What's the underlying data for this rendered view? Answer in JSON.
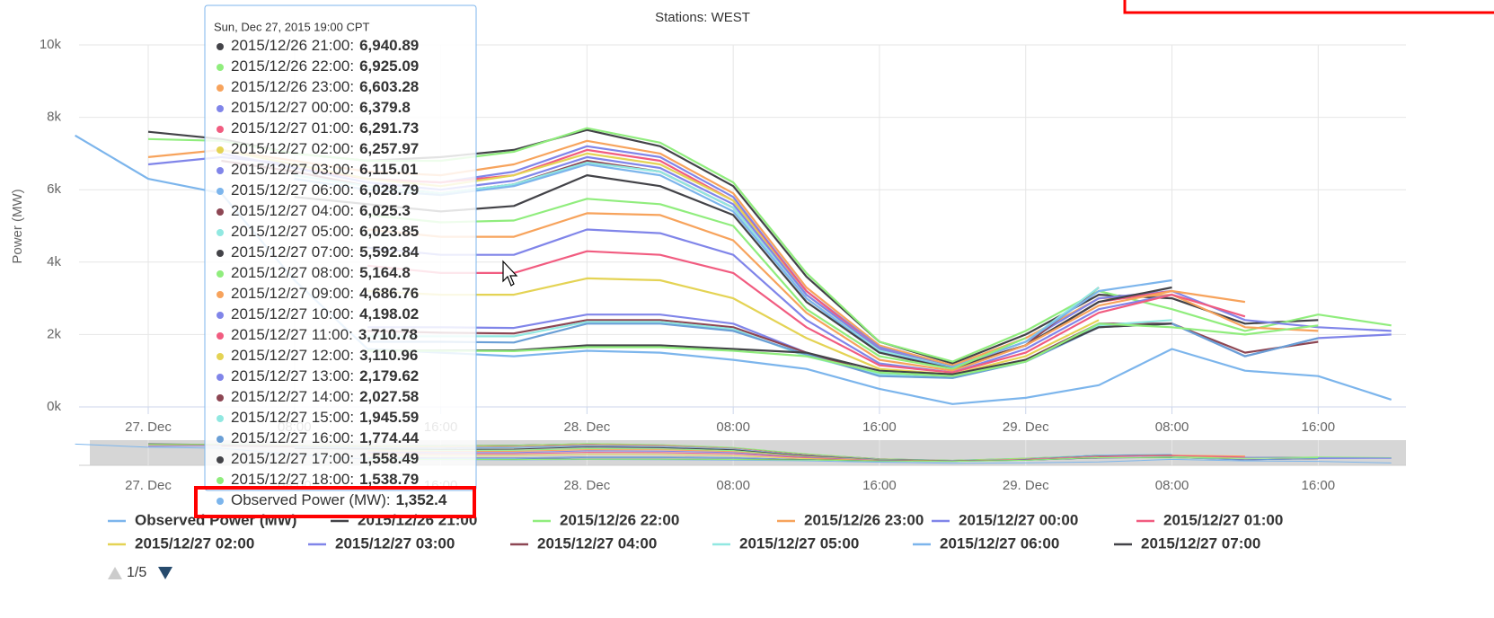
{
  "chart_data": {
    "type": "line",
    "title": "Stations: WEST",
    "y_axis_label": "Power (MW)",
    "x": [
      "2015-12-26T20:00",
      "2015-12-27T00:00",
      "2015-12-27T04:00",
      "2015-12-27T08:00",
      "2015-12-27T12:00",
      "2015-12-27T16:00",
      "2015-12-27T20:00",
      "2015-12-28T00:00",
      "2015-12-28T04:00",
      "2015-12-28T08:00",
      "2015-12-28T12:00",
      "2015-12-28T16:00",
      "2015-12-28T20:00",
      "2015-12-29T00:00",
      "2015-12-29T04:00",
      "2015-12-29T08:00",
      "2015-12-29T12:00",
      "2015-12-29T16:00",
      "2015-12-29T20:00"
    ],
    "xlim": [
      "2015-12-26T20:13",
      "2015-12-29T20:48"
    ],
    "xticks": [
      {
        "value": "2015-12-27T00:00",
        "label": "27. Dec"
      },
      {
        "value": "2015-12-27T08:00",
        "label": "08:00"
      },
      {
        "value": "2015-12-27T16:00",
        "label": "16:00"
      },
      {
        "value": "2015-12-28T00:00",
        "label": "28. Dec"
      },
      {
        "value": "2015-12-28T08:00",
        "label": "08:00"
      },
      {
        "value": "2015-12-28T16:00",
        "label": "16:00"
      },
      {
        "value": "2015-12-29T00:00",
        "label": "29. Dec"
      },
      {
        "value": "2015-12-29T08:00",
        "label": "08:00"
      },
      {
        "value": "2015-12-29T16:00",
        "label": "16:00"
      }
    ],
    "ylim": [
      0,
      10000
    ],
    "yticks": [
      {
        "value": 0,
        "label": "0k"
      },
      {
        "value": 2000,
        "label": "2k"
      },
      {
        "value": 4000,
        "label": "4k"
      },
      {
        "value": 6000,
        "label": "6k"
      },
      {
        "value": 8000,
        "label": "8k"
      },
      {
        "value": 10000,
        "label": "10k"
      }
    ],
    "grid": true,
    "legend_pager": "1/5",
    "series": [
      {
        "name": "Observed Power (MW)",
        "color": "#7cb5ec",
        "values": [
          7500,
          6300,
          5900,
          3500,
          1600,
          1500,
          1400,
          1550,
          1500,
          1300,
          1050,
          500,
          80,
          250,
          600,
          1600,
          1000,
          850,
          200
        ]
      },
      {
        "name": "2015/12/26 21:00",
        "color": "#434348",
        "values": [
          null,
          7600,
          7400,
          7000,
          6800,
          6900,
          7100,
          7650,
          7200,
          6100,
          3600,
          1800,
          1200,
          2000,
          3100,
          3000,
          2300,
          2400,
          null
        ]
      },
      {
        "name": "2015/12/26 22:00",
        "color": "#90ed7d",
        "values": [
          null,
          7400,
          7350,
          7000,
          6800,
          6800,
          7050,
          7700,
          7300,
          6200,
          3700,
          1800,
          1250,
          2100,
          3200,
          2700,
          2100,
          2550,
          2250
        ]
      },
      {
        "name": "2015/12/26 23:00",
        "color": "#f7a35c",
        "values": [
          null,
          6900,
          7100,
          6800,
          6500,
          6400,
          6700,
          7350,
          7000,
          5900,
          3300,
          1700,
          1150,
          1900,
          3000,
          3100,
          2200,
          2100,
          null
        ]
      },
      {
        "name": "2015/12/27 00:00",
        "color": "#8085e9",
        "values": [
          null,
          6700,
          6900,
          6700,
          6300,
          6200,
          6500,
          7200,
          6900,
          5800,
          3200,
          1650,
          1100,
          1800,
          3000,
          3200,
          2400,
          2200,
          2100
        ]
      },
      {
        "name": "2015/12/27 01:00",
        "color": "#f15c80",
        "values": [
          null,
          null,
          7000,
          6600,
          6300,
          6200,
          6400,
          7100,
          6800,
          5700,
          3200,
          1600,
          1100,
          1700,
          2900,
          3200,
          null,
          null,
          null
        ]
      },
      {
        "name": "2015/12/27 02:00",
        "color": "#e4d354",
        "values": [
          null,
          null,
          7100,
          6700,
          6300,
          6100,
          6400,
          7000,
          6700,
          5700,
          3100,
          1600,
          1100,
          1700,
          2900,
          null,
          null,
          null,
          null
        ]
      },
      {
        "name": "2015/12/27 03:00",
        "color": "#8085e9",
        "values": [
          null,
          null,
          7000,
          6600,
          6200,
          6000,
          6250,
          6900,
          6600,
          5600,
          3100,
          1600,
          1100,
          1700,
          2900,
          null,
          null,
          null,
          null
        ]
      },
      {
        "name": "2015/12/27 04:00",
        "color": "#8d4653",
        "values": [
          null,
          null,
          6800,
          6500,
          6100,
          5900,
          6150,
          6800,
          6500,
          5500,
          3000,
          1550,
          1100,
          1700,
          3300,
          null,
          null,
          null,
          null
        ]
      },
      {
        "name": "2015/12/27 05:00",
        "color": "#91e8e1",
        "values": [
          null,
          null,
          null,
          6400,
          6100,
          5900,
          6150,
          6750,
          6500,
          5500,
          3000,
          1550,
          1100,
          1800,
          3300,
          null,
          null,
          null,
          null
        ]
      },
      {
        "name": "2015/12/27 06:00",
        "color": "#7cb5ec",
        "values": [
          null,
          null,
          null,
          6300,
          6000,
          5850,
          6100,
          6700,
          6400,
          5400,
          3000,
          1500,
          1100,
          1800,
          3200,
          3500,
          null,
          null,
          null
        ]
      },
      {
        "name": "2015/12/27 07:00",
        "color": "#434348",
        "values": [
          null,
          null,
          null,
          5800,
          5600,
          5400,
          5550,
          6400,
          6100,
          5300,
          2900,
          1500,
          1050,
          1700,
          2900,
          3300,
          null,
          null,
          null
        ]
      },
      {
        "name": "2015/12/27 08:00",
        "color": "#90ed7d",
        "values": [
          null,
          null,
          null,
          null,
          5300,
          5100,
          5150,
          5750,
          5600,
          5000,
          2700,
          1400,
          1050,
          1900,
          null,
          null,
          null,
          null,
          null
        ]
      },
      {
        "name": "2015/12/27 09:00",
        "color": "#f7a35c",
        "values": [
          null,
          null,
          null,
          null,
          4900,
          4700,
          4700,
          5350,
          5300,
          4600,
          2600,
          1300,
          1000,
          1700,
          2800,
          3200,
          2900,
          null,
          null
        ]
      },
      {
        "name": "2015/12/27 10:00",
        "color": "#8085e9",
        "values": [
          null,
          null,
          null,
          null,
          4400,
          4200,
          4200,
          4900,
          4800,
          4200,
          2400,
          1200,
          950,
          1600,
          2700,
          3100,
          null,
          null,
          null
        ]
      },
      {
        "name": "2015/12/27 11:00",
        "color": "#f15c80",
        "values": [
          null,
          null,
          null,
          null,
          3900,
          3700,
          3700,
          4300,
          4200,
          3700,
          2200,
          1150,
          950,
          1500,
          2600,
          3100,
          2500,
          null,
          null
        ]
      },
      {
        "name": "2015/12/27 12:00",
        "color": "#e4d354",
        "values": [
          null,
          null,
          null,
          null,
          3200,
          3100,
          3100,
          3550,
          3500,
          3000,
          1900,
          1050,
          900,
          1400,
          2400,
          null,
          null,
          null,
          null
        ]
      },
      {
        "name": "2015/12/27 13:00",
        "color": "#8085e9",
        "values": [
          null,
          null,
          null,
          null,
          2200,
          2200,
          2180,
          2550,
          2550,
          2300,
          1500,
          900,
          850,
          1300,
          2300,
          2300,
          1400,
          1900,
          2000
        ]
      },
      {
        "name": "2015/12/27 14:00",
        "color": "#8d4653",
        "values": [
          null,
          null,
          null,
          null,
          2100,
          2050,
          2030,
          2400,
          2400,
          2200,
          1500,
          900,
          850,
          1300,
          2300,
          2300,
          1500,
          1800,
          null
        ]
      },
      {
        "name": "2015/12/27 15:00",
        "color": "#91e8e1",
        "values": [
          null,
          null,
          null,
          null,
          1950,
          1950,
          1950,
          2350,
          2350,
          2150,
          1400,
          900,
          800,
          1250,
          2250,
          2400,
          null,
          null,
          null
        ]
      },
      {
        "name": "2015/12/27 16:00",
        "color": "#6a9fd6",
        "values": [
          null,
          null,
          null,
          null,
          1800,
          1800,
          1780,
          2300,
          2300,
          2100,
          1450,
          850,
          800,
          1250,
          2200,
          2300,
          1400,
          1900,
          null
        ]
      },
      {
        "name": "2015/12/27 17:00",
        "color": "#434348",
        "values": [
          null,
          null,
          null,
          null,
          1550,
          1560,
          1560,
          1700,
          1700,
          1600,
          1500,
          1000,
          900,
          1300,
          2200,
          2300,
          null,
          null,
          null
        ]
      },
      {
        "name": "2015/12/27 18:00",
        "color": "#90ed7d",
        "values": [
          null,
          null,
          null,
          null,
          1550,
          1550,
          1540,
          1650,
          1650,
          1550,
          1400,
          950,
          850,
          1250,
          2300,
          2200,
          2000,
          2250,
          null
        ]
      }
    ]
  },
  "tooltip": {
    "header": "Sun, Dec 27, 2015 19:00 CPT",
    "items": [
      {
        "label": "2015/12/26 21:00:",
        "value": "6,940.89",
        "color": "#434348"
      },
      {
        "label": "2015/12/26 22:00:",
        "value": "6,925.09",
        "color": "#90ed7d"
      },
      {
        "label": "2015/12/26 23:00:",
        "value": "6,603.28",
        "color": "#f7a35c"
      },
      {
        "label": "2015/12/27 00:00:",
        "value": "6,379.8",
        "color": "#8085e9"
      },
      {
        "label": "2015/12/27 01:00:",
        "value": "6,291.73",
        "color": "#f15c80"
      },
      {
        "label": "2015/12/27 02:00:",
        "value": "6,257.97",
        "color": "#e4d354"
      },
      {
        "label": "2015/12/27 03:00:",
        "value": "6,115.01",
        "color": "#8085e9"
      },
      {
        "label": "2015/12/27 06:00:",
        "value": "6,028.79",
        "color": "#7cb5ec"
      },
      {
        "label": "2015/12/27 04:00:",
        "value": "6,025.3",
        "color": "#8d4653"
      },
      {
        "label": "2015/12/27 05:00:",
        "value": "6,023.85",
        "color": "#91e8e1"
      },
      {
        "label": "2015/12/27 07:00:",
        "value": "5,592.84",
        "color": "#434348"
      },
      {
        "label": "2015/12/27 08:00:",
        "value": "5,164.8",
        "color": "#90ed7d"
      },
      {
        "label": "2015/12/27 09:00:",
        "value": "4,686.76",
        "color": "#f7a35c"
      },
      {
        "label": "2015/12/27 10:00:",
        "value": "4,198.02",
        "color": "#8085e9"
      },
      {
        "label": "2015/12/27 11:00:",
        "value": "3,710.78",
        "color": "#f15c80"
      },
      {
        "label": "2015/12/27 12:00:",
        "value": "3,110.96",
        "color": "#e4d354"
      },
      {
        "label": "2015/12/27 13:00:",
        "value": "2,179.62",
        "color": "#8085e9"
      },
      {
        "label": "2015/12/27 14:00:",
        "value": "2,027.58",
        "color": "#8d4653"
      },
      {
        "label": "2015/12/27 15:00:",
        "value": "1,945.59",
        "color": "#91e8e1"
      },
      {
        "label": "2015/12/27 16:00:",
        "value": "1,774.44",
        "color": "#6a9fd6"
      },
      {
        "label": "2015/12/27 17:00:",
        "value": "1,558.49",
        "color": "#434348"
      },
      {
        "label": "2015/12/27 18:00:",
        "value": "1,538.79",
        "color": "#90ed7d"
      },
      {
        "label": "Observed Power (MW):",
        "value": "1,352.4",
        "color": "#7cb5ec"
      }
    ]
  }
}
